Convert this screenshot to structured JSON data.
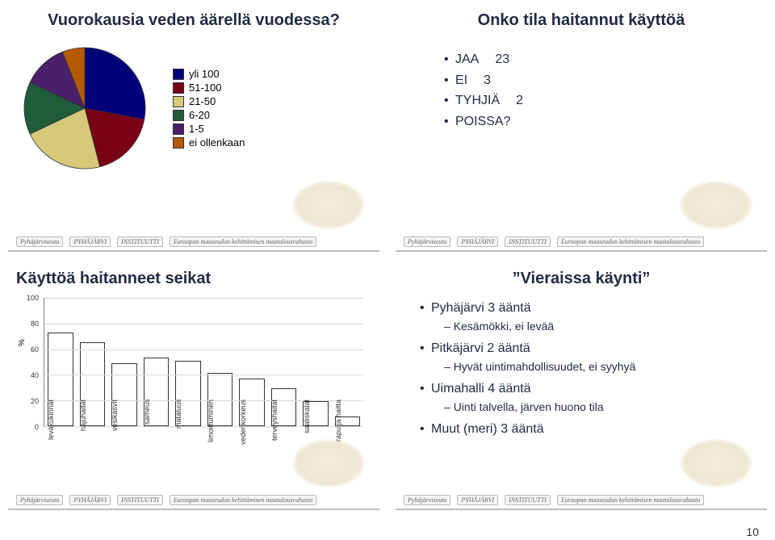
{
  "page_number": "10",
  "colors": {
    "title": "#1f2a44",
    "bar_fill": "#ffffff",
    "bar_border": "#333333",
    "grid": "#d8d8d8",
    "axis": "#888888"
  },
  "panel1": {
    "title": "Vuorokausia veden äärellä vuodessa?",
    "legend": [
      {
        "label": "yli 100",
        "color": "#00007a"
      },
      {
        "label": "51-100",
        "color": "#7a0016"
      },
      {
        "label": "21-50",
        "color": "#d6c97a"
      },
      {
        "label": "6-20",
        "color": "#1f5c3a"
      },
      {
        "label": "1-5",
        "color": "#4a1f6b"
      },
      {
        "label": "ei ollenkaan",
        "color": "#b55a00"
      }
    ],
    "pie_slices": [
      {
        "value": 28,
        "color": "#00007a"
      },
      {
        "value": 18,
        "color": "#7a0016"
      },
      {
        "value": 22,
        "color": "#d6c97a"
      },
      {
        "value": 14,
        "color": "#1f5c3a"
      },
      {
        "value": 12,
        "color": "#4a1f6b"
      },
      {
        "value": 6,
        "color": "#b55a00"
      }
    ],
    "pie_diameter": 150
  },
  "panel2": {
    "title": "Onko tila haitannut käyttöä",
    "items": [
      {
        "label": "JAA",
        "value": "23"
      },
      {
        "label": "EI",
        "value": "3"
      },
      {
        "label": "TYHJIÄ",
        "value": "2"
      },
      {
        "label": "POISSA?",
        "value": ""
      }
    ]
  },
  "panel3": {
    "title": "Käyttöä haitanneet seikat",
    "y_label": "%",
    "y_max": 100,
    "y_tick_step": 20,
    "y_ticks": [
      0,
      20,
      40,
      60,
      80,
      100
    ],
    "categories": [
      "leväkukinnat",
      "hajuhaitat",
      "vesikasvit",
      "sameus",
      "mataluus",
      "limoittuminen",
      "vedenkorkeus",
      "terveyshaitat",
      "saaliskalat",
      "rapu ja haitta"
    ],
    "values": [
      72,
      64,
      48,
      52,
      50,
      40,
      36,
      28,
      18,
      6
    ],
    "bar_fill": "#ffffff",
    "bar_border": "#333333"
  },
  "panel4": {
    "title": "”Vieraissa käynti”",
    "items": [
      {
        "label": "Pyhäjärvi 3 ääntä",
        "sub": "Kesämökki, ei levää"
      },
      {
        "label": "Pitkäjärvi 2 ääntä",
        "sub": "Hyvät uintimahdollisuudet, ei syyhyä"
      },
      {
        "label": "Uimahalli 4 ääntä",
        "sub": "Uinti talvella, järven huono tila"
      },
      {
        "label": "Muut (meri) 3 ääntä"
      }
    ]
  },
  "footer": {
    "items": [
      "Pyhäjärviseutu",
      "PYHÄJÄRVI",
      "INSTITUUTTI",
      "Euroopan maaseudun kehittämisen maatalousrahasto"
    ]
  }
}
